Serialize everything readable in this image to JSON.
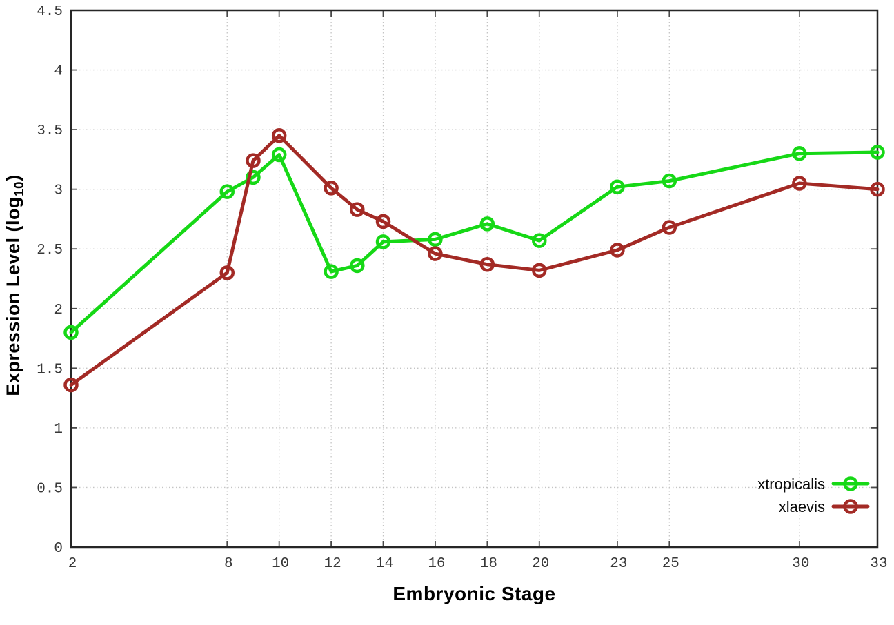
{
  "chart_data": {
    "type": "line",
    "title": "",
    "xlabel": "Embryonic Stage",
    "ylabel": "Expression Level (log10)",
    "ylabel_parts": {
      "main": "Expression Level (log",
      "sub": "10",
      "end": ")"
    },
    "x": [
      2,
      8,
      9,
      10,
      12,
      13,
      14,
      16,
      18,
      20,
      23,
      25,
      30,
      33
    ],
    "x_tick_labels": [
      2,
      8,
      10,
      12,
      14,
      16,
      18,
      20,
      23,
      25,
      30,
      33
    ],
    "y_tick_labels": [
      "0",
      "0.5",
      "1",
      "1.5",
      "2",
      "2.5",
      "3",
      "3.5",
      "4",
      "4.5"
    ],
    "y_tick_values": [
      0,
      0.5,
      1,
      1.5,
      2,
      2.5,
      3,
      3.5,
      4,
      4.5
    ],
    "xlim": [
      2,
      33
    ],
    "ylim": [
      0,
      4.5
    ],
    "grid": true,
    "legend_position": "bottom-right",
    "series": [
      {
        "name": "xtropicalis",
        "color": "#16d816",
        "values": [
          1.8,
          2.98,
          3.1,
          3.29,
          2.31,
          2.36,
          2.56,
          2.58,
          2.71,
          2.57,
          3.02,
          3.07,
          3.3,
          3.31
        ]
      },
      {
        "name": "xlaevis",
        "color": "#a32a25",
        "values": [
          1.36,
          2.3,
          3.24,
          3.45,
          3.01,
          2.83,
          2.73,
          2.46,
          2.37,
          2.32,
          2.49,
          2.68,
          3.05,
          3.0
        ]
      }
    ]
  },
  "style": {
    "background": "#ffffff",
    "border_color": "#262626",
    "grid_color": "#c4c4c4",
    "tick_color": "#4a4a4a",
    "tick_label_color": "#383838",
    "legend_text_color": "#0a0a0a"
  }
}
